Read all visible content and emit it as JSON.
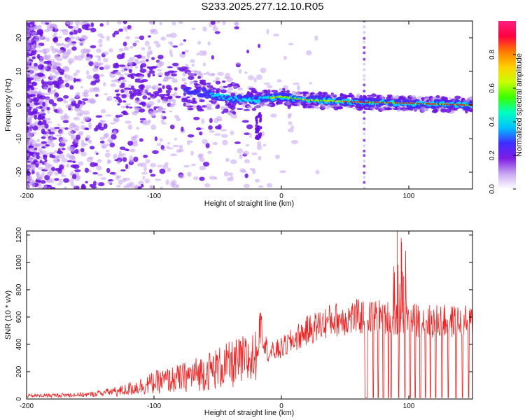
{
  "title": "S233.2025.277.12.10.R05",
  "chart_data": [
    {
      "type": "heatmap",
      "xlabel": "Height of straight line (km)",
      "ylabel": "Frequency (Hz)",
      "xlim": [
        -200,
        150
      ],
      "ylim": [
        -25,
        25
      ],
      "xticks": [
        -200,
        -100,
        0,
        100
      ],
      "yticks": [
        -20,
        -10,
        0,
        10,
        20
      ],
      "colorbar": {
        "label": "Normalized spectral amplitude",
        "range": [
          0,
          1
        ],
        "ticks": [
          "0.0",
          "0.2",
          "0.4",
          "0.6",
          "0.8"
        ],
        "colors": [
          "#ffffff",
          "#c9a6f2",
          "#7e1de4",
          "#3f2cff",
          "#00bfff",
          "#00ffc0",
          "#3aff00",
          "#c8ff00",
          "#ffd000",
          "#ff7a00",
          "#ff0040",
          "#ff2080"
        ]
      },
      "ridge": [
        {
          "x": -100,
          "y": 6
        },
        {
          "x": -80,
          "y": 5
        },
        {
          "x": -60,
          "y": 3.5
        },
        {
          "x": -40,
          "y": 2
        },
        {
          "x": -20,
          "y": 1.5
        },
        {
          "x": 0,
          "y": 2.5
        },
        {
          "x": 20,
          "y": 1.5
        },
        {
          "x": 50,
          "y": 1
        },
        {
          "x": 100,
          "y": 0.5
        },
        {
          "x": 150,
          "y": 0
        }
      ],
      "spike_line_x": 65,
      "grid": false
    },
    {
      "type": "line",
      "xlabel": "Height of straight line (km)",
      "ylabel": "SNR (10 * v/v)",
      "xlim": [
        -200,
        150
      ],
      "ylim": [
        0,
        1230
      ],
      "xticks": [
        -200,
        -100,
        0,
        100
      ],
      "yticks": [
        0,
        200,
        400,
        600,
        800,
        1000,
        1200
      ],
      "color": "#ee2222",
      "envelope": [
        {
          "x": -200,
          "y": 20
        },
        {
          "x": -150,
          "y": 30
        },
        {
          "x": -125,
          "y": 60
        },
        {
          "x": -100,
          "y": 120
        },
        {
          "x": -80,
          "y": 150
        },
        {
          "x": -60,
          "y": 200
        },
        {
          "x": -40,
          "y": 250
        },
        {
          "x": -20,
          "y": 300
        },
        {
          "x": -16,
          "y": 500
        },
        {
          "x": -10,
          "y": 330
        },
        {
          "x": 0,
          "y": 370
        },
        {
          "x": 20,
          "y": 500
        },
        {
          "x": 40,
          "y": 580
        },
        {
          "x": 60,
          "y": 600
        },
        {
          "x": 80,
          "y": 600
        },
        {
          "x": 100,
          "y": 580
        },
        {
          "x": 120,
          "y": 570
        },
        {
          "x": 150,
          "y": 560
        }
      ],
      "spikes": [
        {
          "x": 91,
          "y": 1230
        },
        {
          "x": 94,
          "y": 1180
        },
        {
          "x": 96,
          "y": 900
        },
        {
          "x": -17,
          "y": 630
        }
      ],
      "dropouts": [
        66,
        67,
        72,
        76,
        80,
        84,
        86,
        92,
        97,
        101,
        105,
        109,
        113,
        117,
        121,
        126,
        131,
        137,
        142,
        147
      ],
      "grid": false
    }
  ]
}
